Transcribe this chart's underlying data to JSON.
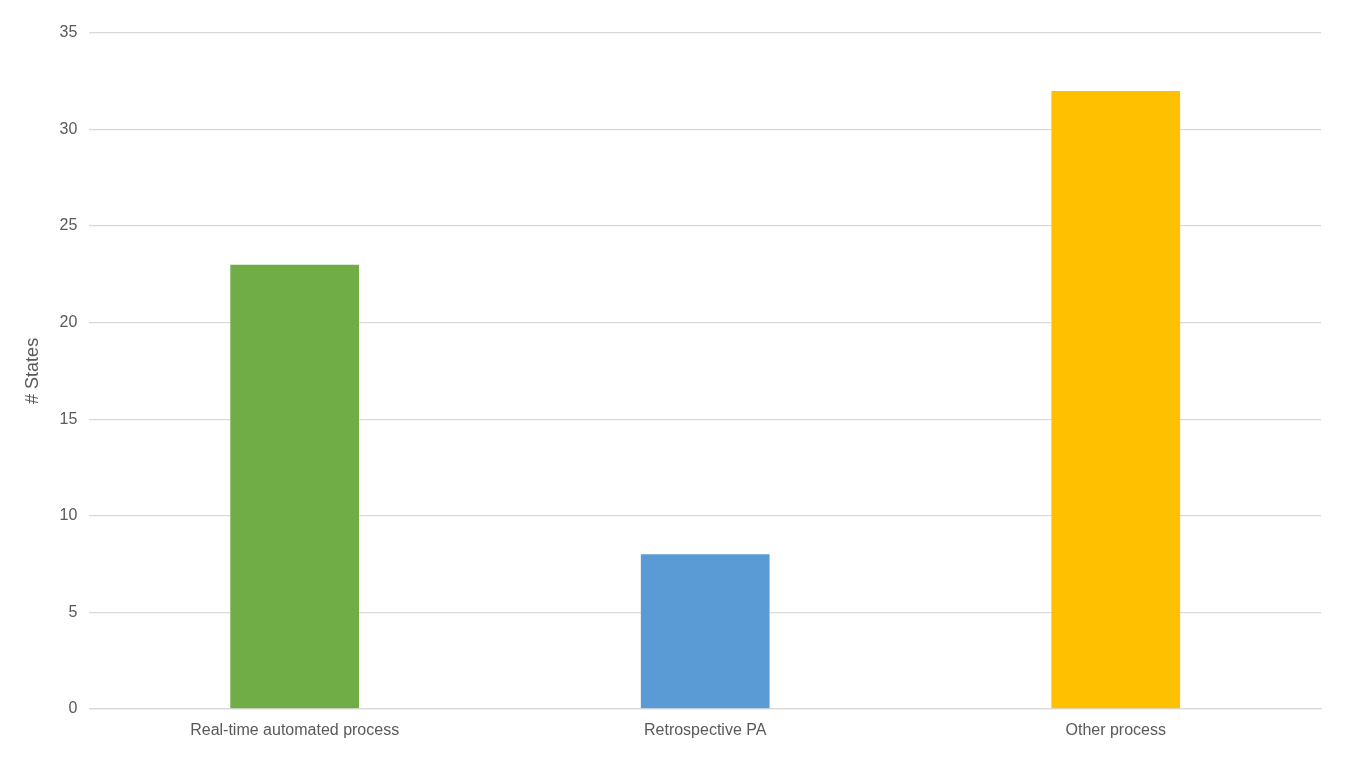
{
  "chart_data": {
    "type": "bar",
    "ylabel": "# States",
    "categories": [
      "Real-time automated process",
      "Retrospective PA",
      "Other process"
    ],
    "values": [
      23,
      8,
      32
    ],
    "colors": [
      "#70ad47",
      "#5b9bd5",
      "#ffc000"
    ],
    "ylim": [
      0,
      35
    ],
    "yticks": [
      0,
      5,
      10,
      15,
      20,
      25,
      30,
      35
    ],
    "grid": "y"
  }
}
